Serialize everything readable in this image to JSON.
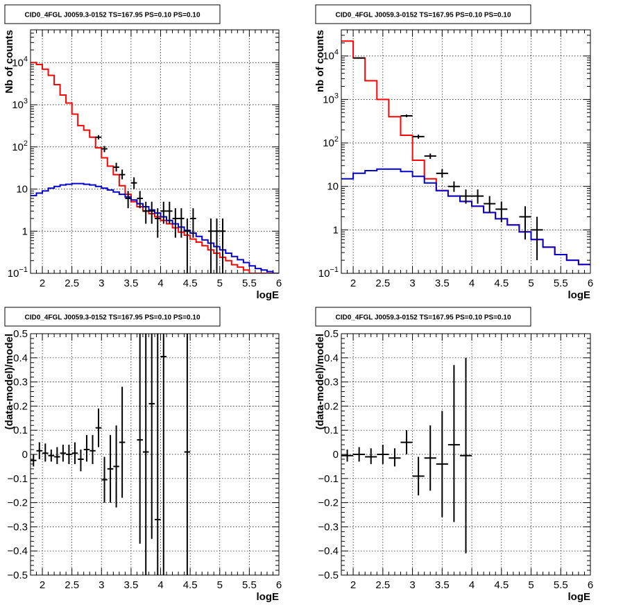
{
  "colors": {
    "data": "#000000",
    "total_model": "#ff0000",
    "source_model": "#0000cc"
  },
  "chart_data": [
    {
      "id": "counts-left",
      "type": "line",
      "title": "CID0_4FGL J0059.3-0152 TS=167.95 PS=0.10 PS=0.10",
      "xlabel": "logE",
      "ylabel": "Nb of counts",
      "ylog": true,
      "xlim": [
        1.8,
        6.0
      ],
      "ylim": [
        0.1,
        60000
      ],
      "xticks": [
        2,
        2.5,
        3,
        3.5,
        4,
        4.5,
        5,
        5.5,
        6
      ],
      "xticklabels": [
        "2",
        "2.5",
        "3",
        "3.5",
        "4",
        "4.5",
        "5",
        "5.5",
        "6"
      ],
      "yticks": [
        0.1,
        1,
        10,
        100,
        1000,
        10000
      ],
      "yticklabels": [
        "10^-1",
        "1",
        "10",
        "10^2",
        "10^3",
        "10^4"
      ],
      "grid": true,
      "series": [
        {
          "kind": "step",
          "color": "total_model",
          "bin_width": 0.1,
          "x_start": 1.8,
          "values": [
            10000,
            9000,
            7000,
            5000,
            3000,
            1700,
            1100,
            600,
            320,
            250,
            170,
            95,
            55,
            35,
            22,
            12,
            7.5,
            5,
            3.8,
            3,
            2.6,
            2.2,
            1.8,
            1.5,
            1.2,
            0.95,
            0.8,
            0.65,
            0.55,
            0.45,
            0.36,
            0.3,
            0.24,
            0.2,
            0.16,
            0.14,
            0.12,
            0.1,
            0.1,
            0.1,
            0.1,
            0.1
          ]
        },
        {
          "kind": "step",
          "color": "source_model",
          "bin_width": 0.1,
          "x_start": 1.8,
          "values": [
            7,
            8,
            9,
            10.5,
            11.5,
            12.5,
            13,
            13.5,
            13.5,
            13,
            12.5,
            11.5,
            10.5,
            9.5,
            8.5,
            7.5,
            6.5,
            5.5,
            4.5,
            3.8,
            3.2,
            2.7,
            2.2,
            1.8,
            1.5,
            1.25,
            1.05,
            0.9,
            0.75,
            0.62,
            0.52,
            0.43,
            0.36,
            0.3,
            0.25,
            0.21,
            0.18,
            0.15,
            0.13,
            0.12,
            0.11,
            0.1
          ]
        },
        {
          "kind": "points",
          "color": "data",
          "xerr": 0.05,
          "points": [
            {
              "x": 2.95,
              "y": 170,
              "ylo": 150,
              "yhi": 190
            },
            {
              "x": 3.05,
              "y": 90,
              "ylo": 75,
              "yhi": 105
            },
            {
              "x": 3.25,
              "y": 33,
              "ylo": 26,
              "yhi": 42
            },
            {
              "x": 3.35,
              "y": 22,
              "ylo": 17,
              "yhi": 29
            },
            {
              "x": 3.45,
              "y": 6,
              "ylo": 3.5,
              "yhi": 9
            },
            {
              "x": 3.55,
              "y": 14,
              "ylo": 10,
              "yhi": 19
            },
            {
              "x": 3.65,
              "y": 6,
              "ylo": 3.5,
              "yhi": 9
            },
            {
              "x": 3.75,
              "y": 3,
              "ylo": 1.5,
              "yhi": 5
            },
            {
              "x": 3.85,
              "y": 3,
              "ylo": 1.5,
              "yhi": 5
            },
            {
              "x": 3.95,
              "y": 2,
              "ylo": 0.7,
              "yhi": 3.5
            },
            {
              "x": 4.05,
              "y": 3,
              "ylo": 1.5,
              "yhi": 5
            },
            {
              "x": 4.15,
              "y": 3,
              "ylo": 1.5,
              "yhi": 5
            },
            {
              "x": 4.25,
              "y": 2,
              "ylo": 0.7,
              "yhi": 3.5
            },
            {
              "x": 4.35,
              "y": 2,
              "ylo": 0.7,
              "yhi": 3.5
            },
            {
              "x": 4.45,
              "y": 1,
              "ylo": 0.1,
              "yhi": 2
            },
            {
              "x": 4.55,
              "y": 2,
              "ylo": 0.7,
              "yhi": 3.5
            },
            {
              "x": 4.85,
              "y": 1,
              "ylo": 0.1,
              "yhi": 2
            },
            {
              "x": 4.95,
              "y": 1,
              "ylo": 0.1,
              "yhi": 2
            },
            {
              "x": 5.05,
              "y": 1,
              "ylo": 0.1,
              "yhi": 2
            }
          ]
        }
      ]
    },
    {
      "id": "counts-right",
      "type": "line",
      "title": "CID0_4FGL J0059.3-0152 TS=167.95 PS=0.10 PS=0.10",
      "xlabel": "logE",
      "ylabel": "nb of counts",
      "ylog": true,
      "xlim": [
        1.8,
        6.0
      ],
      "ylim": [
        0.1,
        40000
      ],
      "xticks": [
        2,
        2.5,
        3,
        3.5,
        4,
        4.5,
        5,
        5.5,
        6
      ],
      "xticklabels": [
        "2",
        "2.5",
        "3",
        "3.5",
        "4",
        "4.5",
        "5",
        "5.5",
        "6"
      ],
      "yticks": [
        0.1,
        1,
        10,
        100,
        1000,
        10000
      ],
      "yticklabels": [
        "10^-1",
        "1",
        "10",
        "10^2",
        "10^3",
        "10^4"
      ],
      "grid": true,
      "series": [
        {
          "kind": "step",
          "color": "total_model",
          "bin_width": 0.2,
          "x_start": 1.8,
          "values": [
            22000,
            9000,
            2700,
            1000,
            400,
            150,
            40,
            15,
            8,
            6,
            4.5,
            3.5,
            2.5,
            1.8,
            1.3,
            0.9,
            0.6,
            0.4,
            0.27,
            0.2,
            0.16
          ]
        },
        {
          "kind": "step",
          "color": "source_model",
          "bin_width": 0.2,
          "x_start": 1.8,
          "values": [
            15,
            20,
            23,
            25,
            25,
            22,
            17,
            12,
            8,
            6,
            4.5,
            3.5,
            2.5,
            1.8,
            1.3,
            0.9,
            0.6,
            0.4,
            0.27,
            0.2,
            0.16
          ]
        },
        {
          "kind": "points",
          "color": "data",
          "xerr": 0.1,
          "points": [
            {
              "x": 2.1,
              "y": 9000,
              "ylo": 8700,
              "yhi": 9300
            },
            {
              "x": 2.9,
              "y": 420,
              "ylo": 390,
              "yhi": 450
            },
            {
              "x": 3.1,
              "y": 140,
              "ylo": 125,
              "yhi": 155
            },
            {
              "x": 3.3,
              "y": 50,
              "ylo": 43,
              "yhi": 57
            },
            {
              "x": 3.5,
              "y": 20,
              "ylo": 16,
              "yhi": 25
            },
            {
              "x": 3.7,
              "y": 10,
              "ylo": 7.5,
              "yhi": 13
            },
            {
              "x": 3.9,
              "y": 6,
              "ylo": 4,
              "yhi": 8.5
            },
            {
              "x": 4.1,
              "y": 6,
              "ylo": 4,
              "yhi": 8.5
            },
            {
              "x": 4.3,
              "y": 4,
              "ylo": 2.5,
              "yhi": 6
            },
            {
              "x": 4.5,
              "y": 3,
              "ylo": 1.5,
              "yhi": 4.5
            },
            {
              "x": 4.9,
              "y": 2,
              "ylo": 0.6,
              "yhi": 3.5
            },
            {
              "x": 5.1,
              "y": 1,
              "ylo": 0.2,
              "yhi": 2
            }
          ]
        }
      ]
    },
    {
      "id": "residuals-left",
      "type": "scatter",
      "title": "CID0_4FGL J0059.3-0152 TS=167.95 PS=0.10 PS=0.10",
      "xlabel": "logE",
      "ylabel": "(data-model)/model",
      "ylog": false,
      "xlim": [
        1.8,
        6.0
      ],
      "ylim": [
        -0.5,
        0.5
      ],
      "xticks": [
        2,
        2.5,
        3,
        3.5,
        4,
        4.5,
        5,
        5.5,
        6
      ],
      "xticklabels": [
        "2",
        "2.5",
        "3",
        "3.5",
        "4",
        "4.5",
        "5",
        "5.5",
        "6"
      ],
      "yticks": [
        -0.5,
        -0.4,
        -0.3,
        -0.2,
        -0.1,
        0,
        0.1,
        0.2,
        0.3,
        0.4,
        0.5
      ],
      "yticklabels": [
        "−0.5",
        "−0.4",
        "−0.3",
        "−0.2",
        "−0.1",
        "0",
        "0.1",
        "0.2",
        "0.3",
        "0.4",
        "0.5"
      ],
      "grid": true,
      "series": [
        {
          "kind": "points",
          "color": "data",
          "xerr": 0.05,
          "points": [
            {
              "x": 1.85,
              "y": -0.025,
              "ylo": -0.05,
              "yhi": 0.0
            },
            {
              "x": 1.95,
              "y": 0.015,
              "ylo": -0.02,
              "yhi": 0.05
            },
            {
              "x": 2.05,
              "y": 0.005,
              "ylo": -0.03,
              "yhi": 0.045
            },
            {
              "x": 2.15,
              "y": -0.005,
              "ylo": -0.03,
              "yhi": 0.02
            },
            {
              "x": 2.25,
              "y": -0.01,
              "ylo": -0.04,
              "yhi": 0.03
            },
            {
              "x": 2.35,
              "y": 0.005,
              "ylo": -0.03,
              "yhi": 0.04
            },
            {
              "x": 2.45,
              "y": 0.0,
              "ylo": -0.04,
              "yhi": 0.04
            },
            {
              "x": 2.55,
              "y": 0.005,
              "ylo": -0.04,
              "yhi": 0.05
            },
            {
              "x": 2.65,
              "y": -0.02,
              "ylo": -0.07,
              "yhi": 0.02
            },
            {
              "x": 2.75,
              "y": 0.02,
              "ylo": -0.03,
              "yhi": 0.08
            },
            {
              "x": 2.85,
              "y": 0.015,
              "ylo": -0.04,
              "yhi": 0.08
            },
            {
              "x": 2.95,
              "y": 0.11,
              "ylo": 0.03,
              "yhi": 0.19
            },
            {
              "x": 3.05,
              "y": -0.105,
              "ylo": -0.2,
              "yhi": -0.01
            },
            {
              "x": 3.15,
              "y": -0.06,
              "ylo": -0.2,
              "yhi": 0.08
            },
            {
              "x": 3.25,
              "y": -0.05,
              "ylo": -0.22,
              "yhi": 0.12
            },
            {
              "x": 3.35,
              "y": 0.05,
              "ylo": -0.18,
              "yhi": 0.28
            },
            {
              "x": 3.65,
              "y": 0.06,
              "ylo": -0.37,
              "yhi": 0.5
            },
            {
              "x": 3.75,
              "y": 0.01,
              "ylo": -0.5,
              "yhi": 0.5
            },
            {
              "x": 3.85,
              "y": 0.21,
              "ylo": -0.35,
              "yhi": 0.5
            },
            {
              "x": 3.95,
              "y": -0.27,
              "ylo": -0.5,
              "yhi": 0.5
            },
            {
              "x": 4.05,
              "y": 0.405,
              "ylo": -0.5,
              "yhi": 0.5
            },
            {
              "x": 4.45,
              "y": 0.01,
              "ylo": -0.5,
              "yhi": 0.5
            }
          ]
        }
      ]
    },
    {
      "id": "residuals-right",
      "type": "scatter",
      "title": "CID0_4FGL J0059.3-0152 TS=167.95 PS=0.10 PS=0.10",
      "xlabel": "logE",
      "ylabel": "(data-model)/model",
      "ylog": false,
      "xlim": [
        1.8,
        6.0
      ],
      "ylim": [
        -0.5,
        0.5
      ],
      "xticks": [
        2,
        2.5,
        3,
        3.5,
        4,
        4.5,
        5,
        5.5,
        6
      ],
      "xticklabels": [
        "2",
        "2.5",
        "3",
        "3.5",
        "4",
        "4.5",
        "5",
        "5.5",
        "6"
      ],
      "yticks": [
        -0.5,
        -0.4,
        -0.3,
        -0.2,
        -0.1,
        0,
        0.1,
        0.2,
        0.3,
        0.4,
        0.5
      ],
      "yticklabels": [
        "−0.5",
        "−0.4",
        "−0.3",
        "−0.2",
        "−0.1",
        "0",
        "0.1",
        "0.2",
        "0.3",
        "0.4",
        "0.5"
      ],
      "grid": true,
      "series": [
        {
          "kind": "points",
          "color": "data",
          "xerr": 0.1,
          "points": [
            {
              "x": 1.9,
              "y": -0.005,
              "ylo": -0.03,
              "yhi": 0.02
            },
            {
              "x": 2.1,
              "y": 0.0,
              "ylo": -0.03,
              "yhi": 0.03
            },
            {
              "x": 2.3,
              "y": -0.01,
              "ylo": -0.04,
              "yhi": 0.025
            },
            {
              "x": 2.5,
              "y": 0.0,
              "ylo": -0.04,
              "yhi": 0.04
            },
            {
              "x": 2.7,
              "y": -0.015,
              "ylo": -0.05,
              "yhi": 0.025
            },
            {
              "x": 2.9,
              "y": 0.05,
              "ylo": 0.0,
              "yhi": 0.1
            },
            {
              "x": 3.1,
              "y": -0.09,
              "ylo": -0.17,
              "yhi": -0.01
            },
            {
              "x": 3.3,
              "y": -0.015,
              "ylo": -0.15,
              "yhi": 0.12
            },
            {
              "x": 3.5,
              "y": -0.04,
              "ylo": -0.26,
              "yhi": 0.18
            },
            {
              "x": 3.7,
              "y": 0.04,
              "ylo": -0.28,
              "yhi": 0.37
            },
            {
              "x": 3.9,
              "y": -0.005,
              "ylo": -0.41,
              "yhi": 0.4
            }
          ]
        }
      ]
    }
  ]
}
